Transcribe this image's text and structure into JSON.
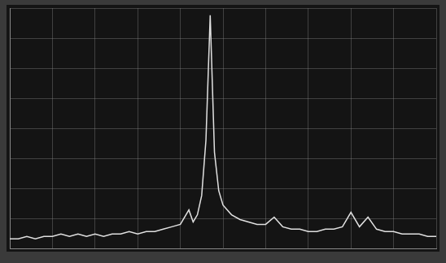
{
  "chart_data": {
    "type": "line",
    "x": [
      0,
      2,
      4,
      6,
      8,
      10,
      12,
      14,
      16,
      18,
      20,
      22,
      24,
      26,
      28,
      30,
      32,
      34,
      36,
      38,
      40,
      42,
      43,
      44,
      45,
      46,
      47,
      48,
      49,
      50,
      52,
      54,
      56,
      58,
      60,
      62,
      64,
      66,
      68,
      70,
      72,
      74,
      76,
      78,
      80,
      82,
      84,
      86,
      88,
      90,
      92,
      94,
      96,
      98,
      100
    ],
    "values": [
      4,
      4,
      5,
      4,
      5,
      5,
      6,
      5,
      6,
      5,
      6,
      5,
      6,
      6,
      7,
      6,
      7,
      7,
      8,
      9,
      10,
      16,
      11,
      14,
      22,
      45,
      97,
      40,
      24,
      18,
      14,
      12,
      11,
      10,
      10,
      13,
      9,
      8,
      8,
      7,
      7,
      8,
      8,
      9,
      15,
      9,
      13,
      8,
      7,
      7,
      6,
      6,
      6,
      5,
      5
    ],
    "color": "#e0e0e0",
    "xlim": [
      0,
      100
    ],
    "xticks": [
      0,
      10,
      20,
      30,
      40,
      50,
      60,
      70,
      80,
      90,
      100
    ],
    "ylim": [
      0,
      100
    ],
    "yticks": [
      0,
      12.5,
      25,
      37.5,
      50,
      62.5,
      75,
      87.5,
      100
    ],
    "grid": true,
    "tick_labels": false
  }
}
